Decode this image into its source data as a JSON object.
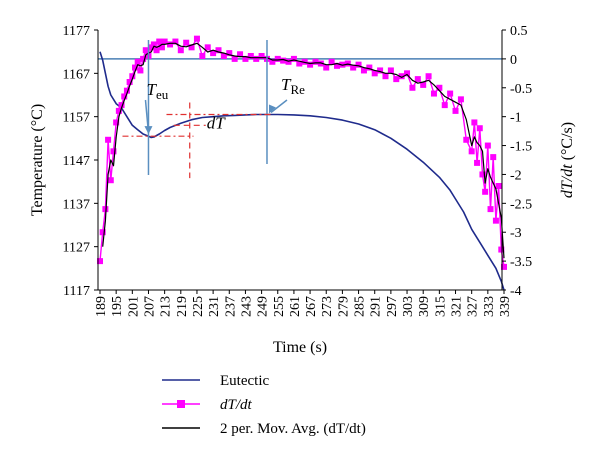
{
  "chart_data": {
    "type": "line",
    "xlabel": "Time (s)",
    "ylabel_left": "Temperature (°C)",
    "ylabel_right": "dT/dt (°C/s)",
    "xlim": [
      188,
      339
    ],
    "ylim_left": [
      1117,
      1177
    ],
    "ylim_right": [
      -4,
      0.5
    ],
    "x_ticks": [
      "189",
      "195",
      "201",
      "207",
      "213",
      "219",
      "225",
      "231",
      "237",
      "243",
      "249",
      "255",
      "261",
      "267",
      "273",
      "279",
      "285",
      "291",
      "297",
      "303",
      "309",
      "315",
      "321",
      "327",
      "333",
      "339"
    ],
    "y_ticks_left": [
      "1117",
      "1127",
      "1137",
      "1147",
      "1157",
      "1167",
      "1177"
    ],
    "y_ticks_right": [
      "-4",
      "-3.5",
      "-3",
      "-2.5",
      "-2",
      "-1.5",
      "-1",
      "-0.5",
      "0",
      "0.5"
    ],
    "legend_position": "bottom",
    "annotations": {
      "t_eu": "T",
      "t_eu_sub": "eu",
      "t_re": "T",
      "t_re_sub": "Re",
      "dt": "dT"
    },
    "series": [
      {
        "name": "Eutectic",
        "axis": "left",
        "color": "#1f2b8c",
        "x": [
          189,
          190,
          191,
          192,
          193,
          195,
          197,
          199,
          201,
          203,
          205,
          207,
          208,
          209,
          211,
          213,
          215,
          219,
          223,
          227,
          231,
          235,
          239,
          243,
          247,
          249,
          251,
          255,
          261,
          267,
          273,
          279,
          285,
          291,
          297,
          303,
          309,
          315,
          319,
          321,
          324,
          327,
          330,
          333,
          336,
          338,
          339
        ],
        "y": [
          1172,
          1170,
          1167,
          1164,
          1162,
          1160,
          1159,
          1157,
          1155,
          1154,
          1153,
          1152.5,
          1152.2,
          1152.3,
          1153,
          1153.8,
          1154.5,
          1155.5,
          1156.3,
          1156.8,
          1157,
          1157.2,
          1157.3,
          1157.4,
          1157.5,
          1157.5,
          1157.5,
          1157.5,
          1157.4,
          1157.2,
          1156.8,
          1156.2,
          1155.3,
          1154,
          1152,
          1149.5,
          1146.5,
          1143,
          1140,
          1138,
          1135,
          1131,
          1128,
          1125,
          1122,
          1119,
          1117
        ]
      },
      {
        "name": "dT/dt",
        "axis": "right",
        "color": "#ff00ff",
        "x": [
          189,
          190,
          191,
          192,
          193,
          194,
          195,
          196,
          197,
          198,
          199,
          200,
          201,
          202,
          203,
          204,
          205,
          206,
          207,
          208,
          209,
          210,
          211,
          212,
          213,
          215,
          217,
          219,
          221,
          223,
          225,
          227,
          229,
          231,
          233,
          235,
          237,
          239,
          241,
          243,
          245,
          247,
          249,
          251,
          253,
          255,
          257,
          259,
          261,
          263,
          265,
          267,
          269,
          271,
          273,
          275,
          277,
          279,
          281,
          283,
          285,
          287,
          289,
          291,
          293,
          295,
          297,
          299,
          301,
          303,
          305,
          307,
          309,
          311,
          313,
          315,
          317,
          319,
          321,
          323,
          325,
          327,
          328,
          329,
          330,
          331,
          332,
          333,
          334,
          335,
          336,
          337,
          338,
          339
        ],
        "y": [
          -3.5,
          -3.0,
          -2.6,
          -1.4,
          -2.1,
          -1.6,
          -1.1,
          -0.9,
          -0.8,
          -0.65,
          -0.55,
          -0.4,
          -0.3,
          -0.15,
          -0.05,
          -0.2,
          0.0,
          0.15,
          0.05,
          0.2,
          0.25,
          0.15,
          0.3,
          0.2,
          0.3,
          0.25,
          0.3,
          0.15,
          0.28,
          0.2,
          0.35,
          0.05,
          0.2,
          0.1,
          0.15,
          0.05,
          0.1,
          0.0,
          0.08,
          0.0,
          0.05,
          0.0,
          0.05,
          0.0,
          -0.05,
          0.0,
          -0.03,
          -0.05,
          0.0,
          -0.08,
          -0.05,
          -0.1,
          -0.05,
          -0.08,
          -0.15,
          -0.05,
          -0.12,
          -0.1,
          -0.08,
          -0.15,
          -0.1,
          -0.2,
          -0.15,
          -0.25,
          -0.2,
          -0.3,
          -0.2,
          -0.35,
          -0.3,
          -0.25,
          -0.5,
          -0.35,
          -0.45,
          -0.3,
          -0.6,
          -0.5,
          -0.8,
          -0.6,
          -0.9,
          -0.7,
          -1.4,
          -1.6,
          -1.1,
          -1.8,
          -1.2,
          -2.0,
          -2.3,
          -1.5,
          -2.6,
          -1.7,
          -2.8,
          -2.2,
          -3.3,
          -3.6
        ]
      },
      {
        "name": "2 per. Mov. Avg. (dT/dt)",
        "axis": "right",
        "color": "#000000",
        "x": [
          190,
          191,
          192,
          193,
          194,
          195,
          196,
          197,
          198,
          199,
          200,
          201,
          202,
          203,
          204,
          205,
          206,
          207,
          208,
          209,
          210,
          211,
          212,
          213,
          215,
          217,
          219,
          221,
          223,
          225,
          227,
          229,
          231,
          233,
          235,
          237,
          239,
          241,
          243,
          245,
          247,
          249,
          251,
          253,
          255,
          257,
          259,
          261,
          263,
          265,
          267,
          269,
          271,
          273,
          275,
          277,
          279,
          281,
          283,
          285,
          287,
          289,
          291,
          293,
          295,
          297,
          299,
          301,
          303,
          305,
          307,
          309,
          311,
          313,
          315,
          317,
          319,
          321,
          323,
          325,
          327,
          328,
          329,
          330,
          331,
          332,
          333,
          334,
          335,
          336,
          337,
          338,
          339
        ],
        "y": [
          -3.25,
          -2.8,
          -2.0,
          -1.75,
          -1.85,
          -1.35,
          -1.0,
          -0.85,
          -0.72,
          -0.6,
          -0.47,
          -0.35,
          -0.22,
          -0.1,
          -0.12,
          -0.1,
          0.07,
          0.1,
          0.12,
          0.22,
          0.2,
          0.22,
          0.25,
          0.25,
          0.27,
          0.27,
          0.22,
          0.21,
          0.24,
          0.27,
          0.2,
          0.12,
          0.15,
          0.12,
          0.1,
          0.07,
          0.05,
          0.04,
          0.04,
          0.02,
          0.02,
          0.02,
          0.02,
          -0.02,
          -0.02,
          -0.01,
          -0.04,
          -0.02,
          -0.04,
          -0.06,
          -0.08,
          -0.07,
          -0.07,
          -0.1,
          -0.1,
          -0.08,
          -0.11,
          -0.09,
          -0.11,
          -0.12,
          -0.15,
          -0.17,
          -0.2,
          -0.22,
          -0.25,
          -0.25,
          -0.27,
          -0.32,
          -0.27,
          -0.37,
          -0.42,
          -0.4,
          -0.37,
          -0.45,
          -0.55,
          -0.65,
          -0.7,
          -0.75,
          -0.8,
          -1.05,
          -1.5,
          -1.35,
          -1.45,
          -1.5,
          -1.6,
          -2.15,
          -1.9,
          -2.05,
          -2.15,
          -2.25,
          -2.5,
          -2.75,
          -3.45
        ]
      }
    ]
  },
  "legend": {
    "eutectic": "Eutectic",
    "dtdt": "dT/dt",
    "movavg": "2 per. Mov. Avg. (dT/dt)"
  }
}
